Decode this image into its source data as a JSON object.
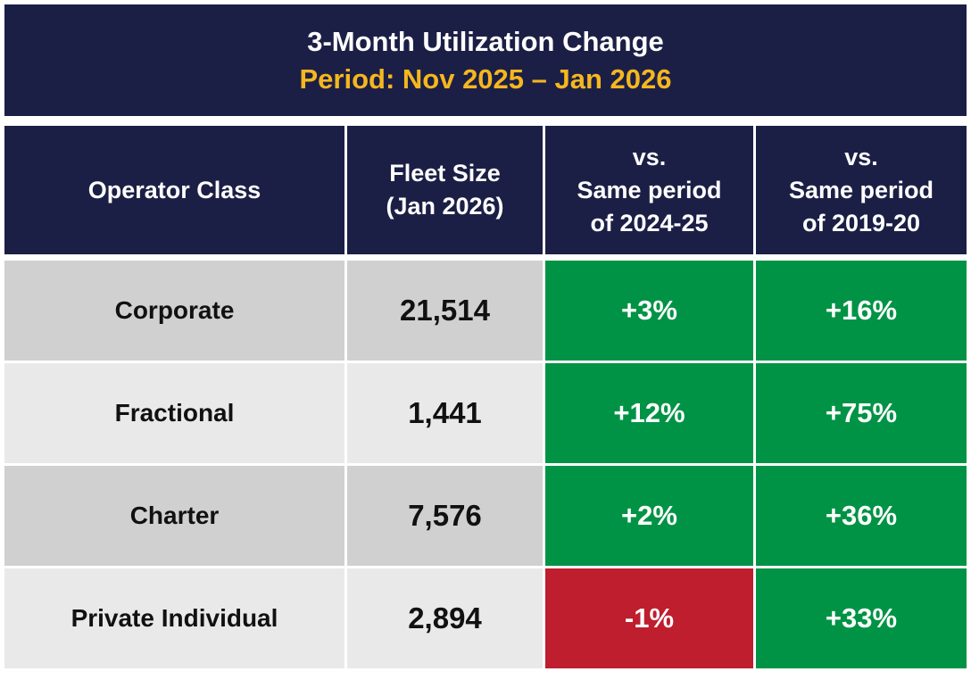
{
  "header": {
    "title": "3-Month Utilization Change",
    "subtitle": "Period: Nov 2025 – Jan 2026"
  },
  "table": {
    "columns": [
      [
        "Operator Class"
      ],
      [
        "Fleet Size",
        "(Jan 2026)"
      ],
      [
        "vs.",
        "Same period",
        "of 2024-25"
      ],
      [
        "vs.",
        "Same period",
        "of 2019-20"
      ]
    ],
    "rows": [
      [
        "Corporate",
        "21,514",
        "+3%",
        "+16%"
      ],
      [
        "Fractional",
        "1,441",
        "+12%",
        "+75%"
      ],
      [
        "Charter",
        "7,576",
        "+2%",
        "+36%"
      ],
      [
        "Private Individual",
        "2,894",
        "-1%",
        "+33%"
      ]
    ]
  }
}
